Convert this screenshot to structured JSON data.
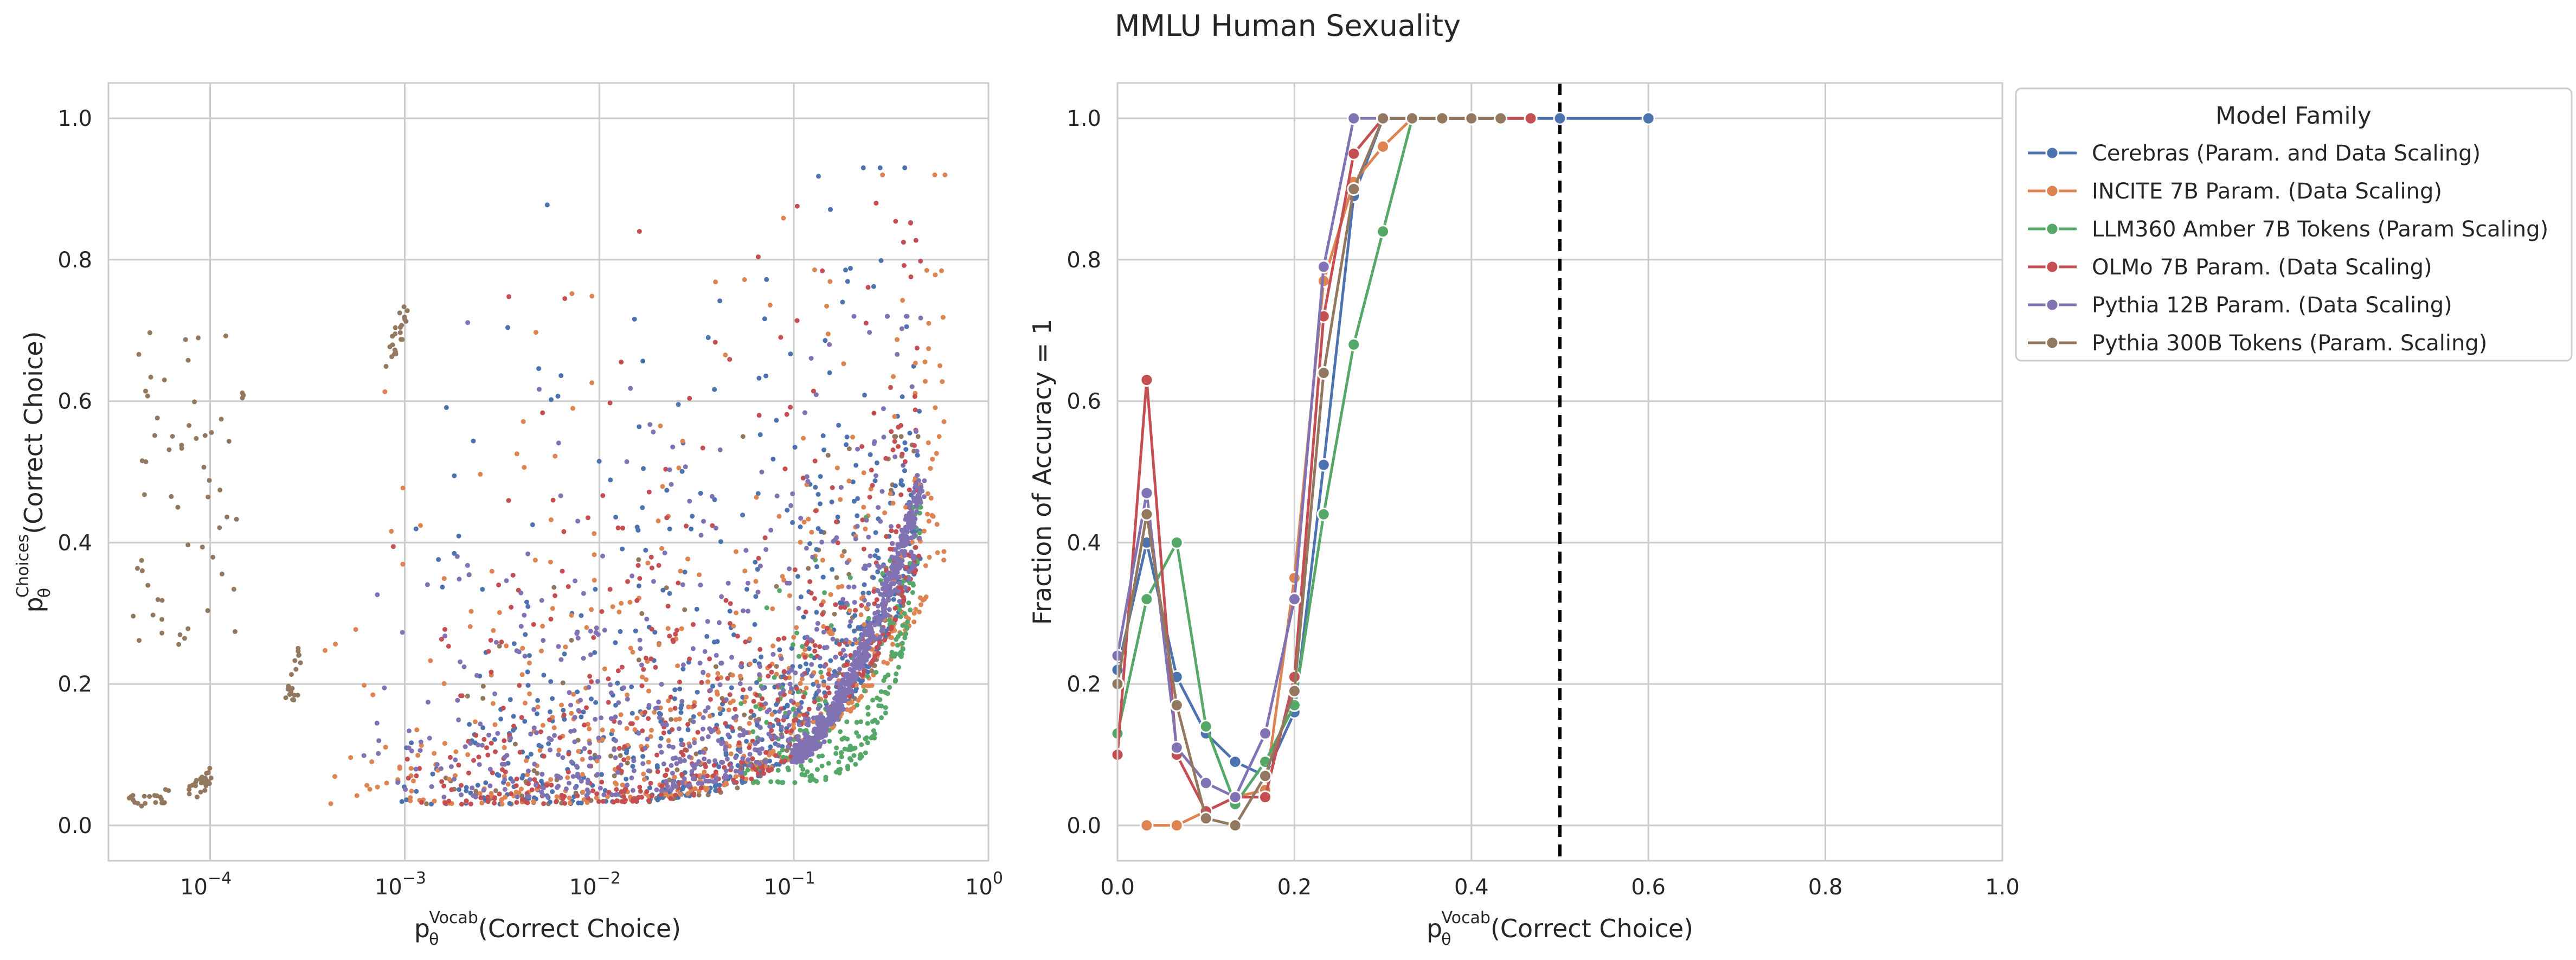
{
  "figure": {
    "title": "MMLU Human Sexuality"
  },
  "legend": {
    "title": "Model Family",
    "entries": [
      {
        "name": "Cerebras (Param. and Data Scaling)",
        "color": "#4c72b0"
      },
      {
        "name": "INCITE 7B Param. (Data Scaling)",
        "color": "#dd8452"
      },
      {
        "name": "LLM360 Amber 7B Tokens (Param Scaling)",
        "color": "#55a868"
      },
      {
        "name": "OLMo 7B Param. (Data Scaling)",
        "color": "#c44e52"
      },
      {
        "name": "Pythia 12B Param. (Data Scaling)",
        "color": "#8172b3"
      },
      {
        "name": "Pythia 300B Tokens (Param. Scaling)",
        "color": "#937860"
      }
    ]
  },
  "chart_data": [
    {
      "type": "scatter",
      "xlabel_main": "p",
      "xlabel_sup": "Vocab",
      "xlabel_sub": "θ",
      "xlabel_rest": "(Correct Choice)",
      "ylabel_main": "p",
      "ylabel_sup": "Choices",
      "ylabel_sub": "θ",
      "ylabel_rest": "(Correct Choice)",
      "xscale": "log",
      "xlim": [
        3e-05,
        1
      ],
      "ylim": [
        -0.05,
        1.05
      ],
      "xticks": [
        {
          "value": 0.0001,
          "base": "10",
          "exp": "−4"
        },
        {
          "value": 0.001,
          "base": "10",
          "exp": "−3"
        },
        {
          "value": 0.01,
          "base": "10",
          "exp": "−2"
        },
        {
          "value": 0.1,
          "base": "10",
          "exp": "−1"
        },
        {
          "value": 1,
          "base": "10",
          "exp": "0"
        }
      ],
      "yticks": [
        "0.0",
        "0.2",
        "0.4",
        "0.6",
        "0.8",
        "1.0"
      ],
      "grid": true,
      "clusters": [
        {
          "series": "Pythia 300B Tokens (Param. Scaling)",
          "pattern": "curve",
          "x_range": [
            3.5e-05,
            6e-05
          ],
          "y_range": [
            0.03,
            0.045
          ],
          "count": 20
        },
        {
          "series": "Pythia 300B Tokens (Param. Scaling)",
          "pattern": "curve",
          "x_range": [
            8e-05,
            0.0001
          ],
          "y_range": [
            0.05,
            0.075
          ],
          "count": 25
        },
        {
          "series": "Pythia 300B Tokens (Param. Scaling)",
          "pattern": "curve",
          "x_range": [
            0.00025,
            0.0003
          ],
          "y_range": [
            0.17,
            0.28
          ],
          "count": 20
        },
        {
          "series": "Pythia 300B Tokens (Param. Scaling)",
          "pattern": "curve",
          "x_range": [
            0.0008,
            0.001
          ],
          "y_range": [
            0.65,
            0.73
          ],
          "count": 22
        },
        {
          "series": "Pythia 300B Tokens (Param. Scaling)",
          "pattern": "blob",
          "x_range": [
            4e-05,
            0.00015
          ],
          "y_range": [
            0.25,
            0.7
          ],
          "count": 60
        },
        {
          "series": "Pythia 300B Tokens (Param. Scaling)",
          "pattern": "cloud",
          "x_range": [
            0.0012,
            0.45
          ],
          "y_range": [
            0.01,
            0.55
          ],
          "count": 180
        },
        {
          "series": "Cerebras (Param. and Data Scaling)",
          "pattern": "cloud",
          "x_range": [
            0.0008,
            0.45
          ],
          "y_range": [
            0.01,
            0.93
          ],
          "count": 600
        },
        {
          "series": "INCITE 7B Param. (Data Scaling)",
          "pattern": "cloud",
          "x_range": [
            0.00035,
            0.6
          ],
          "y_range": [
            0.01,
            0.92
          ],
          "count": 550
        },
        {
          "series": "LLM360 Amber 7B Tokens (Param Scaling)",
          "pattern": "cloud",
          "x_range": [
            0.05,
            0.45
          ],
          "y_range": [
            0.04,
            0.45
          ],
          "count": 260
        },
        {
          "series": "OLMo 7B Param. (Data Scaling)",
          "pattern": "cloud",
          "x_range": [
            0.0008,
            0.45
          ],
          "y_range": [
            0.01,
            0.88
          ],
          "count": 500
        },
        {
          "series": "Pythia 12B Param. (Data Scaling)",
          "pattern": "cloud",
          "x_range": [
            0.0006,
            0.45
          ],
          "y_range": [
            0.02,
            0.72
          ],
          "count": 550
        },
        {
          "series": "Pythia 12B Param. (Data Scaling)",
          "pattern": "curve",
          "x_range": [
            0.1,
            0.45
          ],
          "y_range": [
            0.1,
            0.48
          ],
          "count": 500
        }
      ]
    },
    {
      "type": "line",
      "xlabel_main": "p",
      "xlabel_sup": "Vocab",
      "xlabel_sub": "θ",
      "xlabel_rest": "(Correct Choice)",
      "ylabel": "Fraction of Accuracy = 1",
      "xlim": [
        0,
        1
      ],
      "ylim": [
        -0.05,
        1.05
      ],
      "xticks": [
        "0.0",
        "0.2",
        "0.4",
        "0.6",
        "0.8",
        "1.0"
      ],
      "yticks": [
        "0.0",
        "0.2",
        "0.4",
        "0.6",
        "0.8",
        "1.0"
      ],
      "grid": true,
      "threshold_x": 0.5,
      "series": [
        {
          "name": "Cerebras (Param. and Data Scaling)",
          "x": [
            0.0,
            0.033,
            0.067,
            0.1,
            0.133,
            0.167,
            0.2,
            0.233,
            0.267,
            0.3,
            0.333,
            0.367,
            0.4,
            0.433,
            0.467,
            0.5,
            0.6
          ],
          "y": [
            0.22,
            0.4,
            0.21,
            0.13,
            0.09,
            0.07,
            0.16,
            0.51,
            0.89,
            1.0,
            1.0,
            1.0,
            1.0,
            1.0,
            1.0,
            1.0,
            1.0
          ]
        },
        {
          "name": "INCITE 7B Param. (Data Scaling)",
          "x": [
            0.033,
            0.067,
            0.1,
            0.133,
            0.167,
            0.2,
            0.233,
            0.267,
            0.3,
            0.333
          ],
          "y": [
            0.0,
            0.0,
            0.02,
            0.04,
            0.05,
            0.35,
            0.77,
            0.91,
            0.96,
            1.0
          ]
        },
        {
          "name": "LLM360 Amber 7B Tokens (Param Scaling)",
          "x": [
            0.0,
            0.033,
            0.067,
            0.1,
            0.133,
            0.167,
            0.2,
            0.233,
            0.267,
            0.3,
            0.333
          ],
          "y": [
            0.13,
            0.32,
            0.4,
            0.14,
            0.03,
            0.09,
            0.17,
            0.44,
            0.68,
            0.84,
            1.0
          ]
        },
        {
          "name": "OLMo 7B Param. (Data Scaling)",
          "x": [
            0.0,
            0.033,
            0.067,
            0.1,
            0.133,
            0.167,
            0.2,
            0.233,
            0.267,
            0.3,
            0.333,
            0.367,
            0.4,
            0.433,
            0.467
          ],
          "y": [
            0.1,
            0.63,
            0.1,
            0.02,
            0.04,
            0.04,
            0.21,
            0.72,
            0.95,
            1.0,
            1.0,
            1.0,
            1.0,
            1.0,
            1.0
          ]
        },
        {
          "name": "Pythia 12B Param. (Data Scaling)",
          "x": [
            0.0,
            0.033,
            0.067,
            0.1,
            0.133,
            0.167,
            0.2,
            0.233,
            0.267,
            0.3,
            0.333
          ],
          "y": [
            0.24,
            0.47,
            0.11,
            0.06,
            0.04,
            0.13,
            0.32,
            0.79,
            1.0,
            1.0,
            1.0
          ]
        },
        {
          "name": "Pythia 300B Tokens (Param. Scaling)",
          "x": [
            0.0,
            0.033,
            0.067,
            0.1,
            0.133,
            0.167,
            0.2,
            0.233,
            0.267,
            0.3,
            0.333,
            0.367,
            0.4,
            0.433
          ],
          "y": [
            0.2,
            0.44,
            0.17,
            0.01,
            0.0,
            0.07,
            0.19,
            0.64,
            0.9,
            1.0,
            1.0,
            1.0,
            1.0,
            1.0
          ]
        }
      ]
    }
  ]
}
